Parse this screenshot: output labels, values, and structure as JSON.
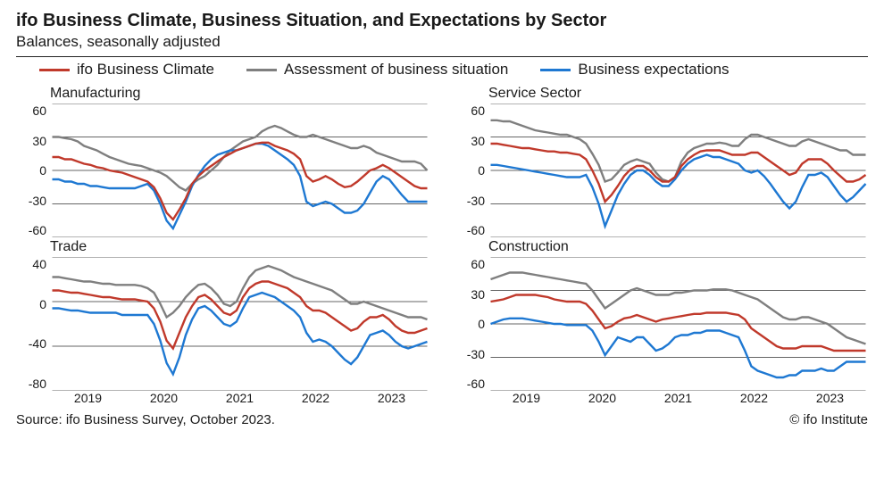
{
  "title": "ifo Business Climate, Business Situation, and Expectations by Sector",
  "subtitle": "Balances, seasonally adjusted",
  "source_text": "Source: ifo Business Survey, October 2023.",
  "credit_text": "© ifo Institute",
  "colors": {
    "climate": "#c0392b",
    "situation": "#7f7f7f",
    "expectations": "#1e78d2",
    "grid": "#333333",
    "background": "#ffffff"
  },
  "legend": [
    {
      "key": "climate",
      "label": "ifo Business Climate"
    },
    {
      "key": "situation",
      "label": "Assessment of business situation"
    },
    {
      "key": "expectations",
      "label": "Business expectations"
    }
  ],
  "linewidth": 2.4,
  "x_ticks": [
    "2019",
    "2020",
    "2021",
    "2022",
    "2023"
  ],
  "x_n": 60,
  "panels": [
    {
      "id": "manufacturing",
      "title": "Manufacturing",
      "y_ticks": [
        60,
        30,
        0,
        -30,
        -60
      ],
      "ylim": [
        -60,
        60
      ],
      "series": {
        "situation": [
          30,
          30,
          29,
          28,
          26,
          22,
          20,
          18,
          15,
          12,
          10,
          8,
          6,
          5,
          4,
          2,
          0,
          -2,
          -5,
          -10,
          -15,
          -18,
          -12,
          -8,
          -5,
          0,
          5,
          12,
          18,
          22,
          26,
          28,
          30,
          35,
          38,
          40,
          38,
          35,
          32,
          30,
          30,
          32,
          30,
          28,
          26,
          24,
          22,
          20,
          20,
          22,
          20,
          16,
          14,
          12,
          10,
          8,
          8,
          8,
          6,
          0
        ],
        "climate": [
          12,
          12,
          10,
          10,
          8,
          6,
          5,
          3,
          2,
          0,
          -1,
          -2,
          -4,
          -6,
          -8,
          -10,
          -15,
          -25,
          -38,
          -44,
          -35,
          -25,
          -12,
          -5,
          0,
          4,
          8,
          12,
          15,
          18,
          20,
          22,
          24,
          25,
          25,
          22,
          20,
          18,
          15,
          10,
          -5,
          -10,
          -8,
          -5,
          -8,
          -12,
          -15,
          -14,
          -10,
          -5,
          0,
          2,
          5,
          2,
          -2,
          -6,
          -10,
          -14,
          -16,
          -16
        ],
        "expectations": [
          -8,
          -8,
          -10,
          -10,
          -12,
          -12,
          -14,
          -14,
          -15,
          -16,
          -16,
          -16,
          -16,
          -16,
          -14,
          -12,
          -18,
          -30,
          -45,
          -52,
          -40,
          -28,
          -14,
          -4,
          4,
          10,
          14,
          16,
          18,
          18,
          20,
          22,
          24,
          24,
          22,
          18,
          14,
          10,
          5,
          -5,
          -28,
          -32,
          -30,
          -28,
          -30,
          -34,
          -38,
          -38,
          -36,
          -30,
          -20,
          -10,
          -5,
          -8,
          -15,
          -22,
          -28,
          -28,
          -28,
          -28
        ]
      }
    },
    {
      "id": "service",
      "title": "Service Sector",
      "y_ticks": [
        60,
        30,
        0,
        -30,
        -60
      ],
      "ylim": [
        -60,
        60
      ],
      "series": {
        "situation": [
          45,
          45,
          44,
          44,
          42,
          40,
          38,
          36,
          35,
          34,
          33,
          32,
          32,
          30,
          28,
          24,
          15,
          5,
          -10,
          -8,
          -2,
          5,
          8,
          10,
          8,
          6,
          -2,
          -8,
          -10,
          -6,
          8,
          16,
          20,
          22,
          24,
          24,
          25,
          24,
          22,
          22,
          28,
          32,
          32,
          30,
          28,
          26,
          24,
          22,
          22,
          26,
          28,
          26,
          24,
          22,
          20,
          18,
          18,
          14,
          14,
          14
        ],
        "climate": [
          24,
          24,
          23,
          22,
          21,
          20,
          20,
          19,
          18,
          17,
          17,
          16,
          16,
          15,
          14,
          10,
          0,
          -12,
          -28,
          -22,
          -14,
          -5,
          1,
          4,
          4,
          0,
          -6,
          -10,
          -10,
          -6,
          4,
          10,
          14,
          17,
          18,
          18,
          18,
          16,
          14,
          14,
          14,
          16,
          16,
          12,
          8,
          4,
          0,
          -4,
          -2,
          6,
          10,
          10,
          10,
          6,
          0,
          -5,
          -10,
          -10,
          -8,
          -4
        ],
        "expectations": [
          5,
          5,
          4,
          3,
          2,
          1,
          0,
          -1,
          -2,
          -3,
          -4,
          -5,
          -6,
          -6,
          -6,
          -4,
          -15,
          -30,
          -50,
          -36,
          -22,
          -12,
          -4,
          0,
          0,
          -4,
          -10,
          -14,
          -14,
          -8,
          0,
          6,
          10,
          12,
          14,
          12,
          12,
          10,
          8,
          6,
          0,
          -2,
          0,
          -5,
          -12,
          -20,
          -28,
          -34,
          -28,
          -15,
          -4,
          -4,
          -2,
          -6,
          -14,
          -22,
          -28,
          -24,
          -18,
          -12
        ]
      }
    },
    {
      "id": "trade",
      "title": "Trade",
      "y_ticks": [
        40,
        0,
        -40,
        -80
      ],
      "ylim": [
        -80,
        40
      ],
      "series": {
        "situation": [
          22,
          22,
          21,
          20,
          19,
          18,
          18,
          17,
          16,
          16,
          15,
          15,
          15,
          15,
          14,
          12,
          8,
          -2,
          -14,
          -10,
          -4,
          4,
          10,
          15,
          16,
          12,
          6,
          -2,
          -4,
          0,
          12,
          22,
          28,
          30,
          32,
          30,
          28,
          25,
          22,
          20,
          18,
          16,
          14,
          12,
          10,
          6,
          2,
          -2,
          -2,
          0,
          -2,
          -4,
          -6,
          -8,
          -10,
          -12,
          -14,
          -14,
          -14,
          -16
        ],
        "climate": [
          10,
          10,
          9,
          8,
          8,
          7,
          6,
          5,
          4,
          4,
          3,
          2,
          2,
          2,
          1,
          0,
          -6,
          -18,
          -35,
          -42,
          -28,
          -14,
          -4,
          4,
          6,
          2,
          -4,
          -10,
          -12,
          -8,
          4,
          12,
          16,
          18,
          18,
          16,
          14,
          12,
          8,
          4,
          -4,
          -8,
          -8,
          -10,
          -14,
          -18,
          -22,
          -26,
          -24,
          -18,
          -14,
          -14,
          -12,
          -16,
          -22,
          -26,
          -28,
          -28,
          -26,
          -24
        ],
        "expectations": [
          -6,
          -6,
          -7,
          -8,
          -8,
          -9,
          -10,
          -10,
          -10,
          -10,
          -10,
          -12,
          -12,
          -12,
          -12,
          -12,
          -20,
          -35,
          -55,
          -65,
          -50,
          -30,
          -16,
          -6,
          -4,
          -8,
          -14,
          -20,
          -22,
          -18,
          -6,
          4,
          6,
          8,
          6,
          4,
          0,
          -4,
          -8,
          -14,
          -28,
          -36,
          -34,
          -36,
          -40,
          -46,
          -52,
          -56,
          -50,
          -40,
          -30,
          -28,
          -26,
          -30,
          -36,
          -40,
          -42,
          -40,
          -38,
          -36
        ]
      }
    },
    {
      "id": "construction",
      "title": "Construction",
      "y_ticks": [
        60,
        30,
        0,
        -30,
        -60
      ],
      "ylim": [
        -60,
        60
      ],
      "series": {
        "situation": [
          40,
          42,
          44,
          46,
          46,
          46,
          45,
          44,
          43,
          42,
          41,
          40,
          39,
          38,
          37,
          36,
          30,
          22,
          14,
          18,
          22,
          26,
          30,
          32,
          30,
          28,
          26,
          26,
          26,
          28,
          28,
          29,
          30,
          30,
          30,
          31,
          31,
          31,
          30,
          28,
          26,
          24,
          22,
          18,
          14,
          10,
          6,
          4,
          4,
          6,
          6,
          4,
          2,
          0,
          -4,
          -8,
          -12,
          -14,
          -16,
          -18
        ],
        "climate": [
          20,
          21,
          22,
          24,
          26,
          26,
          26,
          26,
          25,
          24,
          22,
          21,
          20,
          20,
          20,
          18,
          12,
          4,
          -4,
          -2,
          2,
          5,
          6,
          8,
          6,
          4,
          2,
          4,
          5,
          6,
          7,
          8,
          9,
          9,
          10,
          10,
          10,
          10,
          9,
          8,
          4,
          -4,
          -8,
          -12,
          -16,
          -20,
          -22,
          -22,
          -22,
          -20,
          -20,
          -20,
          -20,
          -22,
          -24,
          -24,
          -24,
          -24,
          -24,
          -24
        ],
        "expectations": [
          0,
          2,
          4,
          5,
          5,
          5,
          4,
          3,
          2,
          1,
          0,
          0,
          -1,
          -1,
          -1,
          -1,
          -6,
          -16,
          -28,
          -20,
          -12,
          -14,
          -16,
          -12,
          -12,
          -18,
          -24,
          -22,
          -18,
          -12,
          -10,
          -10,
          -8,
          -8,
          -6,
          -6,
          -6,
          -8,
          -10,
          -12,
          -24,
          -38,
          -42,
          -44,
          -46,
          -48,
          -48,
          -46,
          -46,
          -42,
          -42,
          -42,
          -40,
          -42,
          -42,
          -38,
          -34,
          -34,
          -34,
          -34
        ]
      }
    }
  ]
}
